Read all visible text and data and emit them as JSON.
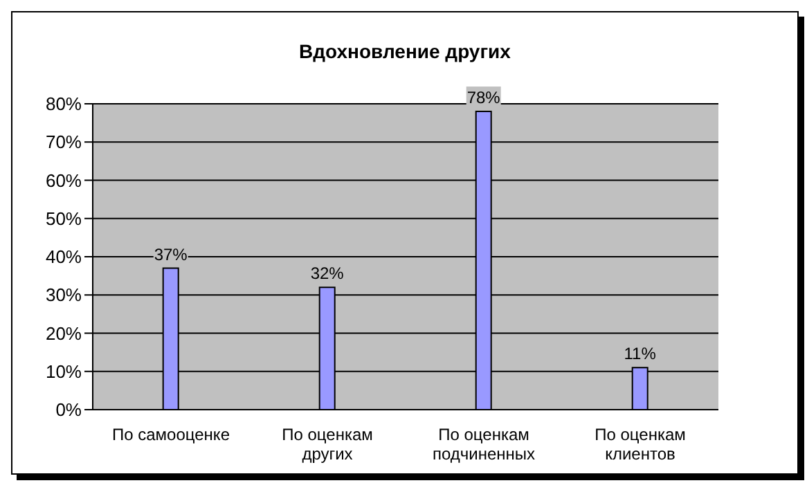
{
  "chart_data": {
    "type": "bar",
    "title": "Вдохновление других",
    "categories": [
      "По самооценке",
      "По оценкам других",
      "По оценкам подчиненных",
      "По оценкам клиентов"
    ],
    "values": [
      37,
      32,
      78,
      11
    ],
    "value_labels": [
      "37%",
      "32%",
      "78%",
      "11%"
    ],
    "color": "#9999ff",
    "ylim": [
      0,
      80
    ],
    "yticks": [
      {
        "value": 0,
        "label": "0%"
      },
      {
        "value": 10,
        "label": "10%"
      },
      {
        "value": 20,
        "label": "20%"
      },
      {
        "value": 30,
        "label": "30%"
      },
      {
        "value": 40,
        "label": "40%"
      },
      {
        "value": 50,
        "label": "50%"
      },
      {
        "value": 60,
        "label": "60%"
      },
      {
        "value": 70,
        "label": "70%"
      },
      {
        "value": 80,
        "label": "80%"
      }
    ],
    "grid": "y",
    "legend": false
  }
}
